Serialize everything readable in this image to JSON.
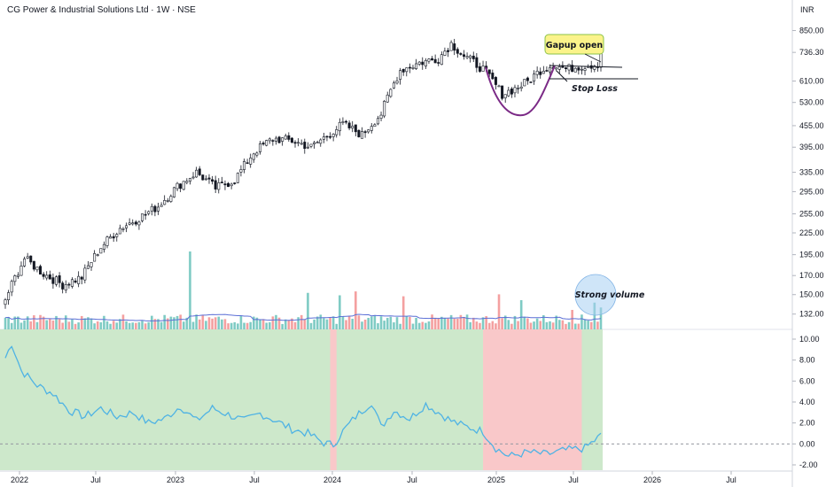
{
  "header": {
    "title": "CG Power & Industrial Solutions Ltd · 1W · NSE"
  },
  "currency": "INR",
  "chart_data": {
    "type": "candlestick",
    "price_axis": {
      "scale": "log",
      "ticks": [
        "850.00",
        "736.30",
        "610.00",
        "530.00",
        "455.00",
        "395.00",
        "335.00",
        "295.00",
        "255.00",
        "225.00",
        "195.00",
        "170.00",
        "150.00",
        "132.00"
      ]
    },
    "time_axis": {
      "ticks": [
        "2022",
        "Jul",
        "2023",
        "Jul",
        "2024",
        "Jul",
        "2025",
        "Jul",
        "2026",
        "Jul"
      ]
    },
    "price_keypoints": [
      [
        0,
        145
      ],
      [
        6,
        190
      ],
      [
        12,
        172
      ],
      [
        18,
        160
      ],
      [
        24,
        168
      ],
      [
        30,
        205
      ],
      [
        36,
        232
      ],
      [
        42,
        248
      ],
      [
        48,
        268
      ],
      [
        54,
        305
      ],
      [
        60,
        335
      ],
      [
        66,
        302
      ],
      [
        72,
        318
      ],
      [
        78,
        382
      ],
      [
        84,
        418
      ],
      [
        90,
        412
      ],
      [
        96,
        395
      ],
      [
        100,
        420
      ],
      [
        106,
        460
      ],
      [
        112,
        428
      ],
      [
        118,
        492
      ],
      [
        124,
        655
      ],
      [
        130,
        688
      ],
      [
        136,
        708
      ],
      [
        140,
        780
      ],
      [
        144,
        720
      ],
      [
        150,
        660
      ],
      [
        156,
        560
      ],
      [
        160,
        580
      ],
      [
        164,
        608
      ],
      [
        168,
        655
      ],
      [
        172,
        680
      ],
      [
        176,
        660
      ],
      [
        180,
        672
      ],
      [
        186,
        682
      ],
      [
        187,
        758
      ]
    ],
    "volume": {
      "base": 22,
      "spikes": [
        [
          58,
          160
        ],
        [
          95,
          75
        ],
        [
          105,
          70
        ],
        [
          110,
          78
        ],
        [
          125,
          68
        ],
        [
          155,
          72
        ],
        [
          162,
          60
        ],
        [
          178,
          40
        ],
        [
          185,
          55
        ],
        [
          187,
          45
        ]
      ],
      "ma_label": "volume-ma"
    },
    "indicator": {
      "ticks": [
        "10.00",
        "8.00",
        "6.00",
        "4.00",
        "2.00",
        "0.00",
        "-2.00"
      ],
      "zero_line": 0,
      "keypoints": [
        [
          0,
          8.2
        ],
        [
          2,
          9.6
        ],
        [
          5,
          7.0
        ],
        [
          10,
          5.6
        ],
        [
          15,
          4.8
        ],
        [
          20,
          3.2
        ],
        [
          25,
          2.6
        ],
        [
          30,
          3.4
        ],
        [
          35,
          2.6
        ],
        [
          40,
          3.0
        ],
        [
          45,
          2.0
        ],
        [
          50,
          2.4
        ],
        [
          55,
          3.6
        ],
        [
          60,
          2.2
        ],
        [
          65,
          3.4
        ],
        [
          70,
          2.8
        ],
        [
          75,
          2.2
        ],
        [
          80,
          2.9
        ],
        [
          85,
          2.2
        ],
        [
          90,
          1.4
        ],
        [
          95,
          1.0
        ],
        [
          100,
          0.1
        ],
        [
          103,
          -0.1
        ],
        [
          106,
          1.2
        ],
        [
          110,
          2.6
        ],
        [
          115,
          4.0
        ],
        [
          118,
          1.6
        ],
        [
          122,
          3.2
        ],
        [
          127,
          2.4
        ],
        [
          132,
          3.8
        ],
        [
          136,
          3.0
        ],
        [
          140,
          2.2
        ],
        [
          144,
          1.7
        ],
        [
          150,
          1.2
        ],
        [
          154,
          -0.4
        ],
        [
          158,
          -1.2
        ],
        [
          164,
          -0.8
        ],
        [
          170,
          -1.0
        ],
        [
          176,
          -0.6
        ],
        [
          182,
          -0.4
        ],
        [
          187,
          0.8
        ]
      ],
      "red_zones": [
        [
          102,
          104
        ],
        [
          150,
          181
        ]
      ]
    }
  },
  "annotations": {
    "gapup": "Gapup open",
    "stoploss": "Stop Loss",
    "volume_note": "Strong volume"
  },
  "colors": {
    "up": "#26a69a",
    "down": "#ef5350",
    "candle_up": "#ffffff",
    "candle_border": "#131722",
    "volume_up": "#7fcbc4",
    "volume_down": "#f4a0a0",
    "volume_ma": "#5b6fd6",
    "indicator_line": "#4fb3e4",
    "zone_green": "#cde8cb",
    "zone_red": "#f9c8c9",
    "cup": "#7b2a86",
    "callout_bg": "#fbf38a",
    "callout_border": "#8bc34a",
    "circle_fill": "#a8cff3"
  }
}
